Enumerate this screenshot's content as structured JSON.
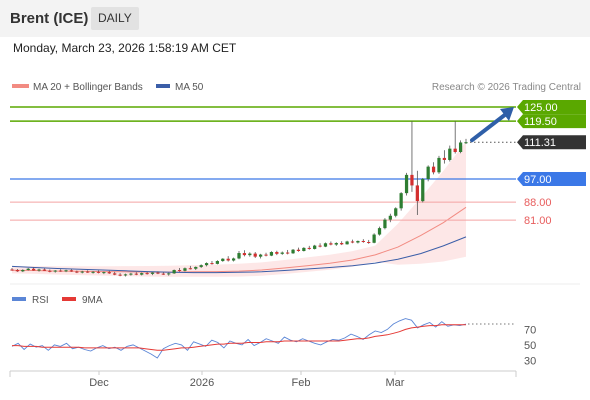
{
  "header": {
    "title": "Brent (ICE)",
    "timeframe": "DAILY"
  },
  "datetime": "Monday, March 23, 2026 1:58:19 AM CET",
  "legend": {
    "ma20_label": "MA 20 + Bollinger Bands",
    "ma50_label": "MA 50",
    "credit": "Research © 2026 Trading Central"
  },
  "rsi_legend": {
    "rsi_label": "RSI",
    "ma9_label": "9MA"
  },
  "colors": {
    "ma20": "#f28b82",
    "ma50": "#3b5ea8",
    "bands_fill": "#fde4e4",
    "up": "#2e7d32",
    "down": "#d32f2f",
    "resistance": "#5aa800",
    "pivot": "#3b78e7",
    "support": "#e85d5d",
    "last_price": "#333333",
    "rsi": "#5b86d6",
    "rsi_ma": "#e53935"
  },
  "chart_data": [
    {
      "type": "line",
      "title": "",
      "x_tick_labels": [
        "Dec",
        "2026",
        "Feb",
        "Mar"
      ],
      "series": [
        {
          "name": "MA 20 + Bollinger Bands",
          "values": [
            61.5,
            61.4,
            61.2,
            61.1,
            61.0,
            60.9,
            60.8,
            60.8,
            60.9,
            61.0,
            61.2,
            61.6,
            62.4,
            63.3,
            64.2,
            65.5,
            67.5,
            70.5,
            75.0,
            80.0,
            86.0
          ]
        },
        {
          "name": "MA 50",
          "values": [
            63.0,
            62.6,
            62.2,
            61.9,
            61.6,
            61.3,
            61.0,
            60.7,
            60.6,
            60.6,
            60.7,
            60.9,
            61.4,
            62.0,
            62.6,
            63.3,
            64.3,
            65.8,
            68.0,
            71.0,
            74.5
          ]
        }
      ],
      "candles": [
        {
          "o": 61.8,
          "h": 62.4,
          "l": 61.3,
          "c": 61.6
        },
        {
          "o": 61.6,
          "h": 62.0,
          "l": 60.9,
          "c": 61.1
        },
        {
          "o": 61.1,
          "h": 61.9,
          "l": 60.8,
          "c": 61.6
        },
        {
          "o": 61.6,
          "h": 62.4,
          "l": 61.4,
          "c": 62.1
        },
        {
          "o": 62.1,
          "h": 62.6,
          "l": 61.3,
          "c": 61.4
        },
        {
          "o": 61.4,
          "h": 62.1,
          "l": 61.0,
          "c": 61.8
        },
        {
          "o": 61.8,
          "h": 62.2,
          "l": 61.2,
          "c": 61.3
        },
        {
          "o": 61.3,
          "h": 61.8,
          "l": 60.7,
          "c": 61.0
        },
        {
          "o": 61.0,
          "h": 61.6,
          "l": 60.6,
          "c": 61.4
        },
        {
          "o": 61.4,
          "h": 61.9,
          "l": 60.9,
          "c": 61.1
        },
        {
          "o": 61.1,
          "h": 61.7,
          "l": 60.8,
          "c": 61.5
        },
        {
          "o": 61.5,
          "h": 61.9,
          "l": 60.9,
          "c": 61.0
        },
        {
          "o": 61.0,
          "h": 61.4,
          "l": 60.4,
          "c": 60.7
        },
        {
          "o": 60.7,
          "h": 61.3,
          "l": 60.3,
          "c": 61.0
        },
        {
          "o": 61.0,
          "h": 61.5,
          "l": 60.5,
          "c": 60.6
        },
        {
          "o": 60.6,
          "h": 61.2,
          "l": 60.2,
          "c": 60.9
        },
        {
          "o": 60.9,
          "h": 61.4,
          "l": 60.3,
          "c": 60.5
        },
        {
          "o": 60.5,
          "h": 61.0,
          "l": 60.0,
          "c": 60.8
        },
        {
          "o": 60.8,
          "h": 61.3,
          "l": 60.1,
          "c": 60.3
        },
        {
          "o": 60.3,
          "h": 60.9,
          "l": 59.6,
          "c": 59.8
        },
        {
          "o": 59.8,
          "h": 60.4,
          "l": 59.2,
          "c": 59.5
        },
        {
          "o": 59.5,
          "h": 60.2,
          "l": 59.1,
          "c": 59.9
        },
        {
          "o": 59.9,
          "h": 60.5,
          "l": 59.4,
          "c": 60.2
        },
        {
          "o": 60.2,
          "h": 60.7,
          "l": 59.6,
          "c": 59.8
        },
        {
          "o": 59.8,
          "h": 60.6,
          "l": 59.5,
          "c": 60.4
        },
        {
          "o": 60.4,
          "h": 60.9,
          "l": 59.8,
          "c": 60.1
        },
        {
          "o": 60.1,
          "h": 60.8,
          "l": 59.6,
          "c": 60.6
        },
        {
          "o": 60.6,
          "h": 61.1,
          "l": 60.0,
          "c": 60.2
        },
        {
          "o": 60.2,
          "h": 60.7,
          "l": 59.7,
          "c": 60.0
        },
        {
          "o": 60.0,
          "h": 60.6,
          "l": 59.4,
          "c": 60.3
        },
        {
          "o": 60.3,
          "h": 61.8,
          "l": 60.1,
          "c": 61.6
        },
        {
          "o": 61.6,
          "h": 62.4,
          "l": 61.0,
          "c": 61.3
        },
        {
          "o": 61.3,
          "h": 62.6,
          "l": 61.1,
          "c": 62.3
        },
        {
          "o": 62.3,
          "h": 63.2,
          "l": 61.8,
          "c": 62.1
        },
        {
          "o": 62.1,
          "h": 63.0,
          "l": 61.6,
          "c": 62.8
        },
        {
          "o": 62.8,
          "h": 63.8,
          "l": 62.4,
          "c": 63.5
        },
        {
          "o": 63.5,
          "h": 64.6,
          "l": 63.0,
          "c": 64.3
        },
        {
          "o": 64.3,
          "h": 65.1,
          "l": 63.7,
          "c": 64.0
        },
        {
          "o": 64.0,
          "h": 65.4,
          "l": 63.8,
          "c": 65.1
        },
        {
          "o": 65.1,
          "h": 66.2,
          "l": 64.8,
          "c": 66.0
        },
        {
          "o": 66.0,
          "h": 67.0,
          "l": 64.9,
          "c": 65.3
        },
        {
          "o": 65.3,
          "h": 66.4,
          "l": 64.9,
          "c": 66.1
        },
        {
          "o": 66.1,
          "h": 69.0,
          "l": 65.8,
          "c": 68.2
        },
        {
          "o": 68.2,
          "h": 69.3,
          "l": 66.9,
          "c": 67.4
        },
        {
          "o": 67.4,
          "h": 68.5,
          "l": 66.8,
          "c": 68.0
        },
        {
          "o": 68.0,
          "h": 68.6,
          "l": 66.3,
          "c": 66.8
        },
        {
          "o": 66.8,
          "h": 67.9,
          "l": 66.1,
          "c": 67.6
        },
        {
          "o": 67.6,
          "h": 68.3,
          "l": 66.9,
          "c": 67.2
        },
        {
          "o": 67.2,
          "h": 68.9,
          "l": 67.0,
          "c": 68.6
        },
        {
          "o": 68.6,
          "h": 69.1,
          "l": 67.4,
          "c": 67.9
        },
        {
          "o": 67.9,
          "h": 68.8,
          "l": 67.5,
          "c": 68.4
        },
        {
          "o": 68.4,
          "h": 69.4,
          "l": 67.7,
          "c": 68.1
        },
        {
          "o": 68.1,
          "h": 69.8,
          "l": 67.9,
          "c": 69.5
        },
        {
          "o": 69.5,
          "h": 70.3,
          "l": 68.7,
          "c": 69.0
        },
        {
          "o": 69.0,
          "h": 70.5,
          "l": 68.8,
          "c": 70.2
        },
        {
          "o": 70.2,
          "h": 71.0,
          "l": 69.5,
          "c": 69.8
        },
        {
          "o": 69.8,
          "h": 71.4,
          "l": 69.6,
          "c": 71.1
        },
        {
          "o": 71.1,
          "h": 72.0,
          "l": 70.4,
          "c": 70.7
        },
        {
          "o": 70.7,
          "h": 72.3,
          "l": 70.5,
          "c": 72.0
        },
        {
          "o": 72.0,
          "h": 72.7,
          "l": 71.2,
          "c": 71.5
        },
        {
          "o": 71.5,
          "h": 72.4,
          "l": 71.0,
          "c": 72.1
        },
        {
          "o": 72.1,
          "h": 72.8,
          "l": 71.3,
          "c": 71.6
        },
        {
          "o": 71.6,
          "h": 73.0,
          "l": 71.5,
          "c": 72.7
        },
        {
          "o": 72.7,
          "h": 73.4,
          "l": 72.0,
          "c": 72.3
        },
        {
          "o": 72.3,
          "h": 73.1,
          "l": 71.9,
          "c": 72.9
        },
        {
          "o": 72.9,
          "h": 73.6,
          "l": 72.2,
          "c": 72.5
        },
        {
          "o": 72.5,
          "h": 73.3,
          "l": 71.8,
          "c": 72.2
        },
        {
          "o": 72.2,
          "h": 75.9,
          "l": 72.0,
          "c": 75.4
        },
        {
          "o": 75.4,
          "h": 78.5,
          "l": 75.0,
          "c": 77.9
        },
        {
          "o": 77.9,
          "h": 81.8,
          "l": 77.4,
          "c": 81.2
        },
        {
          "o": 81.2,
          "h": 83.5,
          "l": 80.2,
          "c": 82.7
        },
        {
          "o": 82.7,
          "h": 86.0,
          "l": 82.1,
          "c": 85.6
        },
        {
          "o": 85.6,
          "h": 91.9,
          "l": 84.7,
          "c": 91.5
        },
        {
          "o": 91.5,
          "h": 99.4,
          "l": 90.6,
          "c": 98.6
        },
        {
          "o": 98.6,
          "h": 119.5,
          "l": 92.0,
          "c": 94.5
        },
        {
          "o": 94.5,
          "h": 100.2,
          "l": 83.0,
          "c": 88.4
        },
        {
          "o": 88.4,
          "h": 97.4,
          "l": 87.9,
          "c": 97.0
        },
        {
          "o": 97.0,
          "h": 102.3,
          "l": 96.1,
          "c": 101.8
        },
        {
          "o": 101.8,
          "h": 103.5,
          "l": 98.8,
          "c": 99.6
        },
        {
          "o": 99.6,
          "h": 106.0,
          "l": 99.0,
          "c": 105.2
        },
        {
          "o": 105.2,
          "h": 108.2,
          "l": 103.0,
          "c": 104.4
        },
        {
          "o": 104.4,
          "h": 110.0,
          "l": 103.8,
          "c": 108.8
        },
        {
          "o": 108.8,
          "h": 119.5,
          "l": 106.9,
          "c": 107.5
        },
        {
          "o": 107.5,
          "h": 112.0,
          "l": 107.0,
          "c": 111.2
        },
        {
          "o": 111.2,
          "h": 112.6,
          "l": 110.6,
          "c": 111.31
        }
      ],
      "horizontal_levels": [
        {
          "label": "125.00",
          "value": 125.0,
          "kind": "resistance"
        },
        {
          "label": "119.50",
          "value": 119.5,
          "kind": "resistance"
        },
        {
          "label": "111.31",
          "value": 111.31,
          "kind": "last_price"
        },
        {
          "label": "97.00",
          "value": 97.0,
          "kind": "pivot"
        },
        {
          "label": "88.00",
          "value": 88.0,
          "kind": "support"
        },
        {
          "label": "81.00",
          "value": 81.0,
          "kind": "support"
        }
      ],
      "projection": {
        "from": 111.31,
        "to": 125.0
      },
      "grid": false,
      "legend_position": "top-left"
    },
    {
      "type": "line",
      "title": "",
      "y_ticks": [
        70,
        50,
        30
      ],
      "ylim": [
        20,
        90
      ],
      "series": [
        {
          "name": "RSI",
          "values": [
            48,
            52,
            44,
            51,
            47,
            49,
            43,
            50,
            48,
            52,
            45,
            47,
            44,
            42,
            46,
            49,
            45,
            47,
            43,
            48,
            50,
            46,
            42,
            38,
            33,
            45,
            49,
            52,
            50,
            43,
            54,
            51,
            48,
            56,
            53,
            46,
            55,
            52,
            50,
            57,
            49,
            53,
            58,
            55,
            52,
            60,
            56,
            54,
            58,
            55,
            52,
            50,
            54,
            57,
            56,
            59,
            64,
            61,
            57,
            63,
            68,
            66,
            70,
            77,
            81,
            84,
            82,
            72,
            76,
            79,
            73,
            80,
            74,
            76,
            75,
            77
          ]
        },
        {
          "name": "9MA",
          "values": [
            49,
            49,
            48,
            48,
            48,
            47,
            47,
            47,
            47,
            47,
            47,
            47,
            46,
            46,
            46,
            46,
            46,
            46,
            46,
            46,
            46,
            46,
            45,
            44,
            43,
            43,
            44,
            45,
            46,
            46,
            47,
            48,
            49,
            50,
            51,
            51,
            52,
            52,
            52,
            53,
            53,
            53,
            54,
            54,
            54,
            55,
            55,
            55,
            55,
            55,
            55,
            55,
            55,
            55,
            55,
            56,
            57,
            58,
            58,
            59,
            61,
            62,
            63,
            65,
            67,
            70,
            72,
            73,
            74,
            75,
            75,
            76,
            76,
            76,
            76,
            76
          ]
        }
      ],
      "grid": false,
      "legend_position": "top-left"
    }
  ]
}
